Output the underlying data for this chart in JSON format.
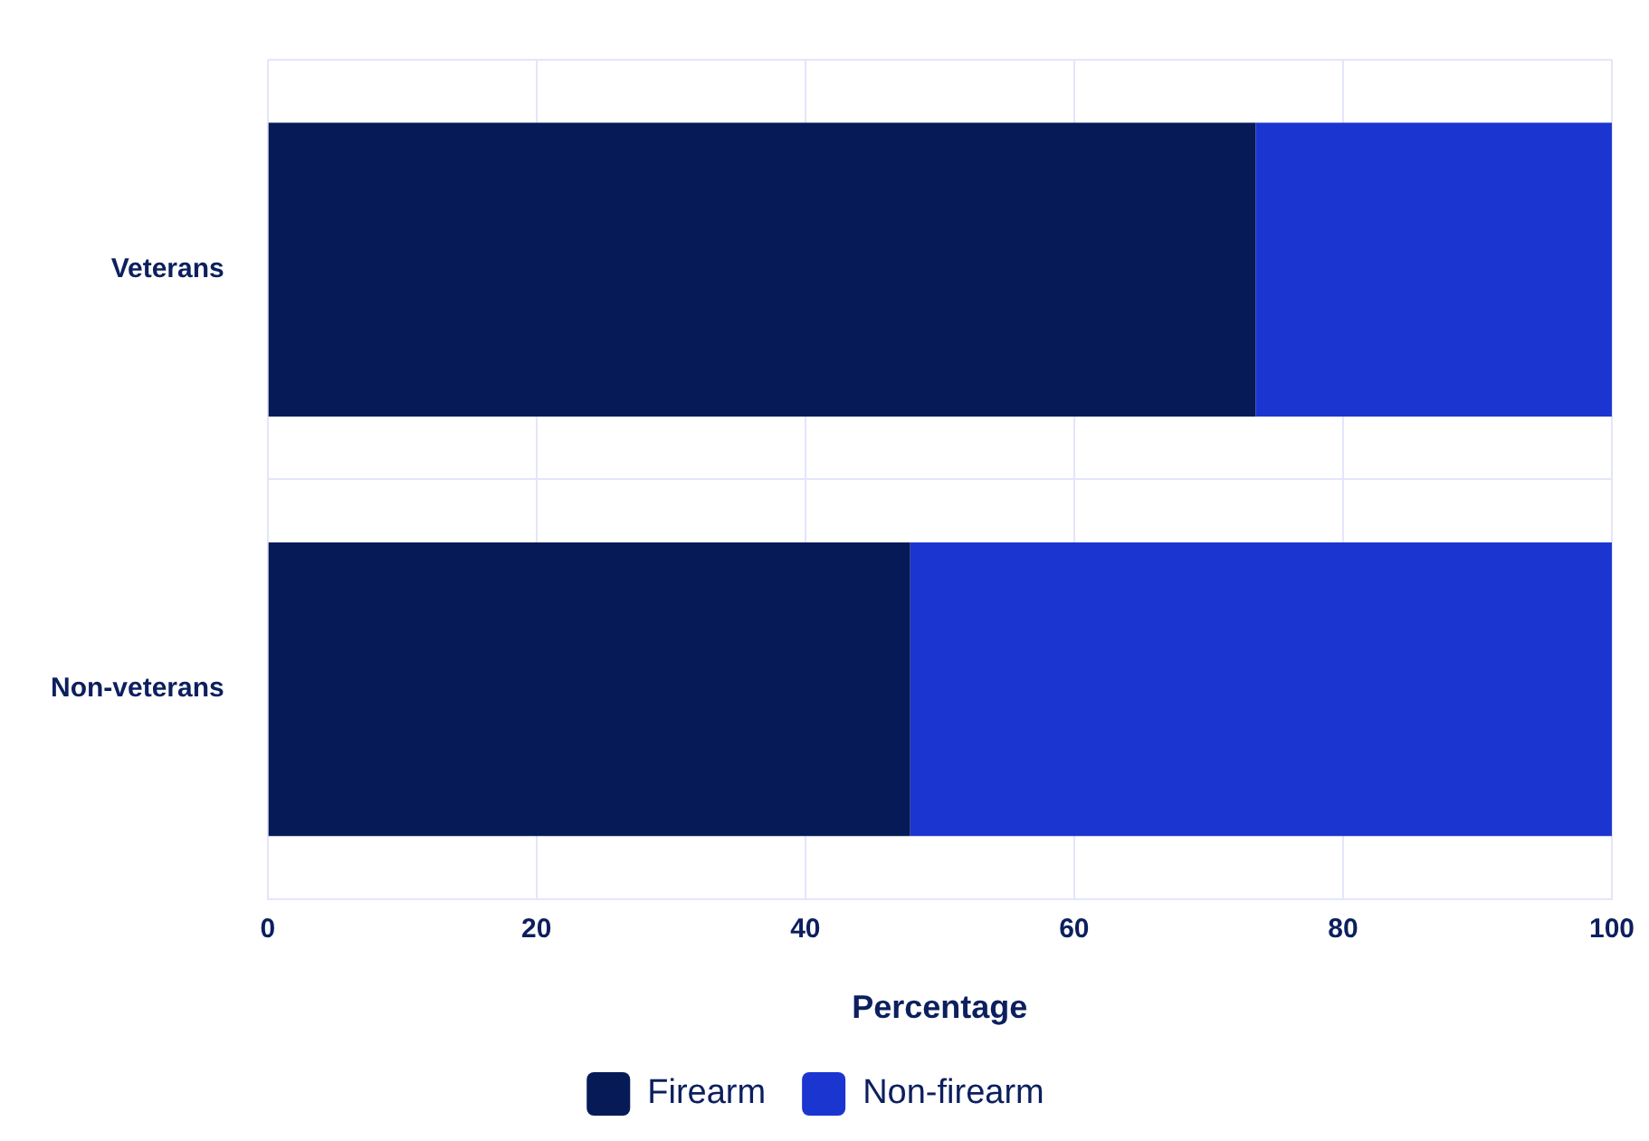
{
  "chart_data": {
    "type": "bar",
    "orientation": "horizontal",
    "stacked": true,
    "categories": [
      "Veterans",
      "Non-veterans"
    ],
    "series": [
      {
        "name": "Firearm",
        "color": "#061a57",
        "values": [
          73.5,
          47.8
        ]
      },
      {
        "name": "Non-firearm",
        "color": "#1b35d1",
        "values": [
          26.5,
          52.2
        ]
      }
    ],
    "xlabel": "Percentage",
    "xlim": [
      0,
      100
    ],
    "xticks": [
      0,
      20,
      40,
      60,
      80,
      100
    ],
    "grid": true,
    "legend": "bottom"
  }
}
